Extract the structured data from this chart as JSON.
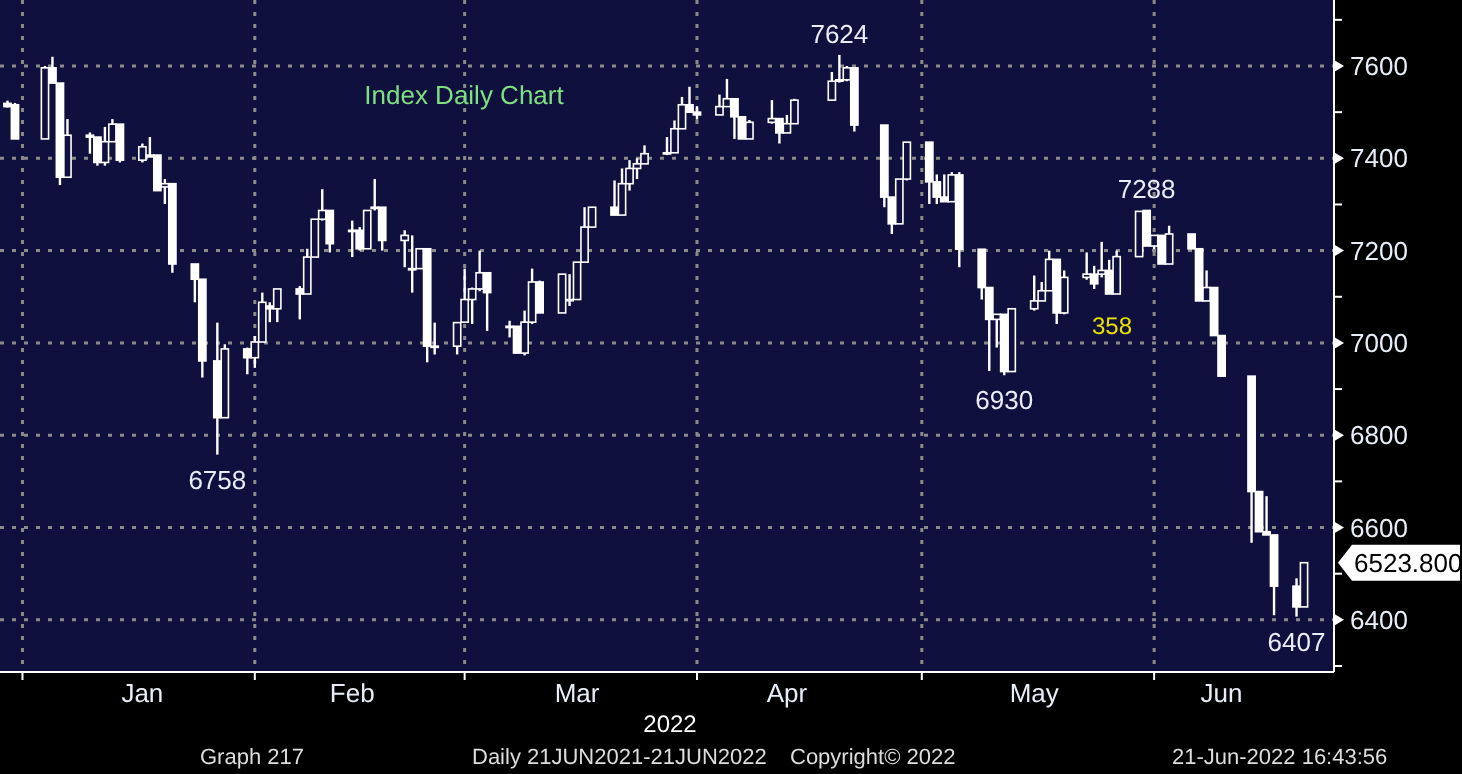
{
  "chart_data": {
    "type": "candlestick",
    "title": "Index Daily Chart",
    "color": "#ffffff",
    "grid": true,
    "x": [
      "2021-12-30",
      "2021-12-31",
      "2022-01-04",
      "2022-01-05",
      "2022-01-06",
      "2022-01-07",
      "2022-01-10",
      "2022-01-11",
      "2022-01-12",
      "2022-01-13",
      "2022-01-14",
      "2022-01-17",
      "2022-01-18",
      "2022-01-19",
      "2022-01-20",
      "2022-01-21",
      "2022-01-24",
      "2022-01-25",
      "2022-01-27",
      "2022-01-28",
      "2022-01-31",
      "2022-02-01",
      "2022-02-02",
      "2022-02-03",
      "2022-02-04",
      "2022-02-07",
      "2022-02-08",
      "2022-02-09",
      "2022-02-10",
      "2022-02-11",
      "2022-02-14",
      "2022-02-15",
      "2022-02-16",
      "2022-02-17",
      "2022-02-18",
      "2022-02-21",
      "2022-02-22",
      "2022-02-23",
      "2022-02-24",
      "2022-02-25",
      "2022-02-28",
      "2022-03-01",
      "2022-03-02",
      "2022-03-03",
      "2022-03-04",
      "2022-03-07",
      "2022-03-08",
      "2022-03-09",
      "2022-03-10",
      "2022-03-11",
      "2022-03-14",
      "2022-03-15",
      "2022-03-16",
      "2022-03-17",
      "2022-03-18",
      "2022-03-21",
      "2022-03-22",
      "2022-03-23",
      "2022-03-24",
      "2022-03-25",
      "2022-03-28",
      "2022-03-29",
      "2022-03-30",
      "2022-03-31",
      "2022-04-01",
      "2022-04-04",
      "2022-04-05",
      "2022-04-06",
      "2022-04-07",
      "2022-04-08",
      "2022-04-11",
      "2022-04-12",
      "2022-04-13",
      "2022-04-14",
      "2022-04-19",
      "2022-04-20",
      "2022-04-21",
      "2022-04-22",
      "2022-04-26",
      "2022-04-27",
      "2022-04-28",
      "2022-04-29",
      "2022-05-02",
      "2022-05-03",
      "2022-05-04",
      "2022-05-05",
      "2022-05-06",
      "2022-05-09",
      "2022-05-10",
      "2022-05-11",
      "2022-05-12",
      "2022-05-13",
      "2022-05-16",
      "2022-05-17",
      "2022-05-18",
      "2022-05-19",
      "2022-05-20",
      "2022-05-23",
      "2022-05-24",
      "2022-05-25",
      "2022-05-26",
      "2022-05-27",
      "2022-05-30",
      "2022-05-31",
      "2022-06-01",
      "2022-06-02",
      "2022-06-03",
      "2022-06-06",
      "2022-06-07",
      "2022-06-08",
      "2022-06-09",
      "2022-06-10",
      "2022-06-14",
      "2022-06-15",
      "2022-06-16",
      "2022-06-17",
      "2022-06-20",
      "2022-06-21"
    ],
    "ohlc": [
      [
        7519,
        7525,
        7510,
        7512
      ],
      [
        7516,
        7520,
        7442,
        7442
      ],
      [
        7442,
        7600,
        7442,
        7596
      ],
      [
        7596,
        7620,
        7563,
        7563
      ],
      [
        7563,
        7563,
        7342,
        7359
      ],
      [
        7359,
        7485,
        7359,
        7450
      ],
      [
        7450,
        7456,
        7410,
        7446
      ],
      [
        7446,
        7446,
        7384,
        7391
      ],
      [
        7391,
        7468,
        7384,
        7436
      ],
      [
        7436,
        7485,
        7436,
        7474
      ],
      [
        7474,
        7474,
        7391,
        7396
      ],
      [
        7396,
        7432,
        7391,
        7425
      ],
      [
        7407,
        7446,
        7403,
        7403
      ],
      [
        7407,
        7407,
        7330,
        7330
      ],
      [
        7338,
        7355,
        7301,
        7345
      ],
      [
        7345,
        7345,
        7152,
        7171
      ],
      [
        7171,
        7171,
        7088,
        7138
      ],
      [
        7138,
        7138,
        6925,
        6961
      ],
      [
        6961,
        7044,
        6758,
        6838
      ],
      [
        6838,
        6997,
        6838,
        6987
      ],
      [
        6987,
        6990,
        6932,
        6968
      ],
      [
        6968,
        7015,
        6946,
        7002
      ],
      [
        7002,
        7109,
        7002,
        7088
      ],
      [
        7080,
        7088,
        7045,
        7074
      ],
      [
        7074,
        7117,
        7045,
        7117
      ],
      [
        7117,
        7123,
        7051,
        7106
      ],
      [
        7106,
        7204,
        7106,
        7186
      ],
      [
        7186,
        7268,
        7186,
        7268
      ],
      [
        7268,
        7333,
        7265,
        7287
      ],
      [
        7287,
        7287,
        7196,
        7215
      ],
      [
        7244,
        7265,
        7186,
        7244
      ],
      [
        7244,
        7251,
        7200,
        7204
      ],
      [
        7204,
        7287,
        7204,
        7287
      ],
      [
        7294,
        7355,
        7287,
        7294
      ],
      [
        7294,
        7294,
        7200,
        7222
      ],
      [
        7222,
        7244,
        7164,
        7233
      ],
      [
        7161,
        7233,
        7109,
        7161
      ],
      [
        7161,
        7204,
        7161,
        7204
      ],
      [
        7204,
        7204,
        6958,
        6993
      ],
      [
        6993,
        7044,
        6975,
        6993
      ],
      [
        6993,
        7044,
        6975,
        7044
      ],
      [
        7045,
        7161,
        7045,
        7094
      ],
      [
        7094,
        7120,
        7041,
        7117
      ],
      [
        7117,
        7200,
        7112,
        7152
      ],
      [
        7152,
        7152,
        7026,
        7109
      ],
      [
        7036,
        7048,
        7012,
        7036
      ],
      [
        7036,
        7036,
        6978,
        6978
      ],
      [
        6978,
        7070,
        6973,
        7045
      ],
      [
        7045,
        7161,
        7041,
        7132
      ],
      [
        7132,
        7135,
        7065,
        7065
      ],
      [
        7065,
        7149,
        7065,
        7149
      ],
      [
        7094,
        7149,
        7080,
        7094
      ],
      [
        7094,
        7175,
        7094,
        7175
      ],
      [
        7175,
        7294,
        7175,
        7251
      ],
      [
        7251,
        7294,
        7251,
        7294
      ],
      [
        7294,
        7352,
        7277,
        7277
      ],
      [
        7277,
        7378,
        7277,
        7345
      ],
      [
        7345,
        7396,
        7330,
        7378
      ],
      [
        7378,
        7400,
        7355,
        7388
      ],
      [
        7388,
        7428,
        7388,
        7410
      ],
      [
        7410,
        7446,
        7407,
        7412
      ],
      [
        7412,
        7482,
        7412,
        7464
      ],
      [
        7464,
        7533,
        7464,
        7516
      ],
      [
        7516,
        7555,
        7500,
        7500
      ],
      [
        7500,
        7513,
        7484,
        7494
      ],
      [
        7494,
        7538,
        7494,
        7512
      ],
      [
        7512,
        7572,
        7512,
        7529
      ],
      [
        7529,
        7529,
        7442,
        7490
      ],
      [
        7490,
        7490,
        7442,
        7442
      ],
      [
        7442,
        7483,
        7442,
        7478
      ],
      [
        7478,
        7526,
        7475,
        7486
      ],
      [
        7486,
        7486,
        7432,
        7455
      ],
      [
        7455,
        7494,
        7455,
        7475
      ],
      [
        7475,
        7529,
        7475,
        7526
      ],
      [
        7526,
        7587,
        7526,
        7567
      ],
      [
        7567,
        7624,
        7564,
        7570
      ],
      [
        7570,
        7600,
        7567,
        7596
      ],
      [
        7596,
        7596,
        7458,
        7472
      ],
      [
        7472,
        7472,
        7294,
        7316
      ],
      [
        7316,
        7316,
        7236,
        7258
      ],
      [
        7258,
        7355,
        7258,
        7355
      ],
      [
        7355,
        7435,
        7352,
        7435
      ],
      [
        7435,
        7435,
        7301,
        7349
      ],
      [
        7349,
        7365,
        7301,
        7316
      ],
      [
        7316,
        7365,
        7306,
        7306
      ],
      [
        7306,
        7370,
        7306,
        7364
      ],
      [
        7364,
        7370,
        7164,
        7203
      ],
      [
        7203,
        7203,
        7094,
        7120
      ],
      [
        7120,
        7120,
        6939,
        7051
      ],
      [
        7051,
        7062,
        6990,
        7062
      ],
      [
        7062,
        7062,
        6930,
        6938
      ],
      [
        6938,
        7074,
        6938,
        7074
      ],
      [
        7074,
        7146,
        7070,
        7091
      ],
      [
        7091,
        7132,
        7091,
        7113
      ],
      [
        7113,
        7200,
        7113,
        7181
      ],
      [
        7181,
        7181,
        7041,
        7065
      ],
      [
        7065,
        7157,
        7062,
        7142
      ],
      [
        7142,
        7196,
        7137,
        7149
      ],
      [
        7149,
        7167,
        7117,
        7128
      ],
      [
        7149,
        7219,
        7142,
        7157
      ],
      [
        7157,
        7180,
        7106,
        7106
      ],
      [
        7106,
        7200,
        7106,
        7187
      ],
      [
        7187,
        7285,
        7187,
        7285
      ],
      [
        7287,
        7288,
        7210,
        7210
      ],
      [
        7210,
        7233,
        7203,
        7233
      ],
      [
        7233,
        7233,
        7171,
        7171
      ],
      [
        7171,
        7254,
        7171,
        7236
      ],
      [
        7236,
        7236,
        7204,
        7204
      ],
      [
        7204,
        7204,
        7091,
        7091
      ],
      [
        7091,
        7157,
        7091,
        7120
      ],
      [
        7120,
        7120,
        7016,
        7016
      ],
      [
        7016,
        7016,
        6928,
        6928
      ],
      [
        6928,
        6928,
        6567,
        6678
      ],
      [
        6678,
        6678,
        6591,
        6591
      ],
      [
        6591,
        6668,
        6584,
        6584
      ],
      [
        6584,
        6584,
        6410,
        6473
      ],
      [
        6473,
        6490,
        6407,
        6428
      ],
      [
        6428,
        6524,
        6428,
        6523.8
      ]
    ],
    "xlim": [
      "2021-12-29",
      "2022-06-25"
    ],
    "xticks": [
      {
        "value": "2022-01-01",
        "label": null
      },
      {
        "value": "2022-01-17",
        "label": "Jan"
      },
      {
        "value": "2022-02-01",
        "label": null
      },
      {
        "value": "2022-02-14",
        "label": "Feb"
      },
      {
        "value": "2022-03-01",
        "label": null
      },
      {
        "value": "2022-03-16",
        "label": "Mar"
      },
      {
        "value": "2022-04-01",
        "label": null
      },
      {
        "value": "2022-04-13",
        "label": "Apr"
      },
      {
        "value": "2022-05-01",
        "label": null
      },
      {
        "value": "2022-05-16",
        "label": "May"
      },
      {
        "value": "2022-06-01",
        "label": null
      },
      {
        "value": "2022-06-10",
        "label": "Jun"
      }
    ],
    "ylim": [
      6287,
      7743
    ],
    "yticks": [
      {
        "value": 6300,
        "label": null
      },
      6400,
      {
        "value": 6500,
        "label": null
      },
      6600,
      {
        "value": 6700,
        "label": null
      },
      6800,
      {
        "value": 6900,
        "label": null
      },
      7000,
      {
        "value": 7100,
        "label": null
      },
      7200,
      {
        "value": 7300,
        "label": null
      },
      7400,
      {
        "value": 7500,
        "label": null
      },
      7600,
      {
        "value": 7700,
        "label": null
      }
    ],
    "annotations": [
      {
        "text": "7624",
        "x": "2022-04-20",
        "y": 7624
      },
      {
        "text": "6758",
        "x": "2022-01-27",
        "y": 6758
      },
      {
        "text": "6930",
        "x": "2022-05-12",
        "y": 6930
      },
      {
        "text": "7288",
        "x": "2022-05-31",
        "y": 7288
      },
      {
        "text": "6407",
        "x": "2022-06-20",
        "y": 6407
      },
      {
        "text": "6523.800",
        "x": "2022-06-21",
        "y": 6523.8
      },
      "358",
      "2022",
      "Graph 217",
      "Daily 21JUN2021-21JUN2022",
      "Copyright© 2022",
      "21-Jun-2022 16:43:56"
    ]
  }
}
